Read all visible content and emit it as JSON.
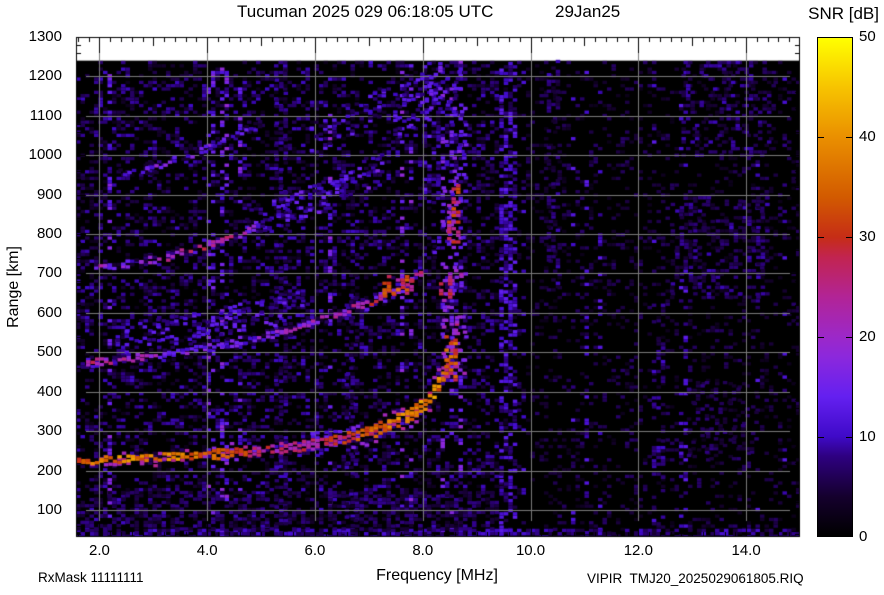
{
  "header": {
    "title_left": "Tucuman 2025 029 06:18:05 UTC",
    "title_right": "29Jan25",
    "colorbar_title": "SNR [dB]"
  },
  "footer": {
    "rx_mask": "RxMask 11111111",
    "xaxis_label": "Frequency [MHz]",
    "file_label": "VIPIR  TMJ20_2025029061805.RIQ"
  },
  "yaxis": {
    "label": "Range [km]",
    "ticks": [
      1300,
      1200,
      1100,
      1000,
      900,
      800,
      700,
      600,
      500,
      400,
      300,
      200,
      100
    ]
  },
  "xaxis": {
    "tick_values": [
      2,
      4,
      6,
      8,
      10,
      12,
      14
    ],
    "tick_labels": [
      "2.0",
      "4.0",
      "6.0",
      "8.0",
      "10.0",
      "12.0",
      "14.0"
    ]
  },
  "colorbar": {
    "tick_values": [
      50,
      40,
      30,
      20,
      10,
      0
    ],
    "dash_values": [
      40,
      30,
      20,
      10
    ]
  },
  "chart_data": {
    "type": "heatmap",
    "title": "Tucuman 2025 029 06:18:05 UTC  29Jan25",
    "xlabel": "Frequency [MHz]",
    "ylabel": "Range [km]",
    "zlabel": "SNR [dB]",
    "xlim": [
      1.565,
      15.0
    ],
    "ylim": [
      31.5,
      1300
    ],
    "zlim": [
      0,
      50
    ],
    "data_top_km": 1240,
    "grid": {
      "x_ticks": [
        2,
        4,
        6,
        8,
        10,
        12,
        14
      ],
      "y_ticks": [
        100,
        200,
        300,
        400,
        500,
        600,
        700,
        800,
        900,
        1000,
        1100,
        1200
      ],
      "color": "#7b7b7b"
    },
    "colormap": [
      [
        0,
        "#000000"
      ],
      [
        4,
        "#15002e"
      ],
      [
        8,
        "#2e0080"
      ],
      [
        10,
        "#3f0ac8"
      ],
      [
        14,
        "#6420f0"
      ],
      [
        18,
        "#8c28dc"
      ],
      [
        20,
        "#9c28c8"
      ],
      [
        24,
        "#b22496"
      ],
      [
        28,
        "#c22450"
      ],
      [
        30,
        "#c62d16"
      ],
      [
        34,
        "#d25a00"
      ],
      [
        40,
        "#ea8f00"
      ],
      [
        45,
        "#f7c300"
      ],
      [
        50,
        "#ffff00"
      ]
    ],
    "noise": {
      "cell_f": 0.0835,
      "cell_km": 8.4,
      "left": {
        "fmax": 9.35,
        "p": 0.3,
        "snr_lo": 2,
        "snr_hi": 10
      },
      "right": {
        "p": 0.16,
        "snr_lo": 2,
        "snr_hi": 7
      },
      "col_boost_p": 0.18,
      "col_boost": 1.9
    },
    "noise_patches": [
      {
        "f0": 1.565,
        "f1": 15.0,
        "km0": 31.5,
        "km1": 52,
        "p": 0.6,
        "snr": 8
      },
      {
        "f0": 1.565,
        "f1": 9.35,
        "km0": 52,
        "km1": 145,
        "p": 0.38,
        "snr": 6
      },
      {
        "f0": 9.42,
        "f1": 9.68,
        "km0": 31.5,
        "km1": 1240,
        "p": 0.5,
        "snr": 10
      },
      {
        "f0": 5.25,
        "f1": 5.5,
        "km0": 31.5,
        "km1": 1240,
        "p": 0.28,
        "snr": 7
      },
      {
        "f0": 6.55,
        "f1": 6.75,
        "km0": 31.5,
        "km1": 700,
        "p": 0.25,
        "snr": 7
      },
      {
        "f0": 12.25,
        "f1": 12.45,
        "km0": 31.5,
        "km1": 620,
        "p": 0.3,
        "snr": 8
      },
      {
        "f0": 10.3,
        "f1": 10.55,
        "km0": 650,
        "km1": 1240,
        "p": 0.3,
        "snr": 7
      },
      {
        "f0": 12.6,
        "f1": 14.4,
        "km0": 640,
        "km1": 900,
        "p": 0.3,
        "snr": 7
      },
      {
        "f0": 12.8,
        "f1": 14.5,
        "km0": 1000,
        "km1": 1240,
        "p": 0.3,
        "snr": 7
      },
      {
        "f0": 12.9,
        "f1": 14.2,
        "km0": 230,
        "km1": 430,
        "p": 0.25,
        "snr": 6
      },
      {
        "f0": 8.0,
        "f1": 8.28,
        "km0": 880,
        "km1": 1240,
        "p": 0.3,
        "snr": 10
      }
    ],
    "traces": [
      {
        "name": "2nd-hop diffuse cloud",
        "type": "diffuse",
        "points": [
          [
            2.3,
            530,
            10
          ],
          [
            3.5,
            562,
            10
          ],
          [
            4.8,
            595,
            11
          ],
          [
            5.8,
            625,
            11
          ]
        ],
        "thickness_km": 75,
        "density": 0.28
      },
      {
        "name": "3rd-hop diffuse cloud",
        "type": "diffuse",
        "points": [
          [
            4.7,
            828,
            10
          ],
          [
            5.8,
            882,
            11
          ],
          [
            6.6,
            932,
            11
          ],
          [
            7.25,
            980,
            12
          ]
        ],
        "thickness_km": 75,
        "density": 0.3
      },
      {
        "name": "4th-hop diffuse cloud",
        "type": "diffuse",
        "points": [
          [
            5.9,
            1045,
            9
          ],
          [
            6.6,
            1095,
            10
          ],
          [
            7.3,
            1145,
            10
          ]
        ],
        "thickness_km": 85,
        "density": 0.26
      },
      {
        "name": "top-right spread",
        "type": "diffuse",
        "points": [
          [
            7.45,
            1105,
            11
          ],
          [
            7.9,
            1145,
            12
          ],
          [
            8.3,
            1175,
            13
          ]
        ],
        "thickness_km": 130,
        "density": 0.32
      },
      {
        "name": "F-layer 1st hop",
        "type": "sharp",
        "points": [
          [
            1.58,
            228,
            34
          ],
          [
            2.4,
            233,
            37
          ],
          [
            3.4,
            240,
            37
          ],
          [
            4.4,
            248,
            31
          ],
          [
            5.2,
            258,
            24
          ],
          [
            6.0,
            272,
            25
          ],
          [
            6.7,
            292,
            30
          ],
          [
            7.2,
            312,
            34
          ],
          [
            7.6,
            336,
            37
          ],
          [
            8.0,
            372,
            39
          ],
          [
            8.2,
            408,
            38
          ],
          [
            8.38,
            455,
            33
          ],
          [
            8.5,
            510,
            26
          ],
          [
            8.6,
            585,
            22
          ],
          [
            8.66,
            660,
            19
          ],
          [
            8.7,
            725,
            15
          ]
        ],
        "thickness_km": 14,
        "thickness_end_km": 34,
        "density": 0.85
      },
      {
        "name": "F-layer 1st hop high branch",
        "type": "sharp",
        "points": [
          [
            8.66,
            450,
            13
          ],
          [
            8.74,
            560,
            16
          ],
          [
            8.79,
            660,
            15
          ],
          [
            8.82,
            770,
            12
          ]
        ],
        "thickness_km": 26,
        "density": 0.5
      },
      {
        "name": "F-layer 2nd hop",
        "type": "sharp",
        "points": [
          [
            1.75,
            478,
            25
          ],
          [
            2.5,
            488,
            21
          ],
          [
            3.5,
            505,
            15
          ],
          [
            4.5,
            528,
            13
          ],
          [
            5.3,
            552,
            17
          ],
          [
            6.0,
            582,
            19
          ],
          [
            6.6,
            612,
            22
          ],
          [
            7.0,
            632,
            26
          ],
          [
            7.45,
            660,
            30
          ],
          [
            7.75,
            685,
            30
          ],
          [
            8.0,
            715,
            22
          ],
          [
            8.2,
            765,
            15
          ],
          [
            8.38,
            845,
            12
          ]
        ],
        "thickness_km": 16,
        "density": 0.7
      },
      {
        "name": "F-layer 3rd hop",
        "type": "sharp",
        "points": [
          [
            1.9,
            718,
            19
          ],
          [
            2.6,
            730,
            15
          ],
          [
            3.3,
            748,
            21
          ],
          [
            4.0,
            778,
            26
          ],
          [
            4.45,
            798,
            22
          ],
          [
            5.0,
            828,
            12
          ]
        ],
        "thickness_km": 14,
        "density": 0.6
      },
      {
        "name": "F-layer 4th hop",
        "type": "sharp",
        "points": [
          [
            2.35,
            955,
            11
          ],
          [
            3.0,
            975,
            16
          ],
          [
            3.6,
            1002,
            13
          ],
          [
            4.3,
            1042,
            11
          ],
          [
            4.95,
            1082,
            9
          ]
        ],
        "thickness_km": 14,
        "density": 0.5
      }
    ],
    "vspread": {
      "f_center": 8.55,
      "f_jitter": 0.22,
      "km0": 430,
      "km1": 1245,
      "density_bottom": 0.55,
      "density_top": 0.28,
      "snr_base": 20,
      "snr_slope": -0.012
    },
    "hot_patches": [
      {
        "f0": 8.4,
        "f1": 8.62,
        "km0": 430,
        "km1": 545,
        "p": 0.5,
        "snr": 30
      },
      {
        "f0": 8.45,
        "f1": 8.68,
        "km0": 780,
        "km1": 930,
        "p": 0.42,
        "snr": 27
      },
      {
        "f0": 8.3,
        "f1": 8.5,
        "km0": 640,
        "km1": 700,
        "p": 0.35,
        "snr": 25
      },
      {
        "f0": 7.25,
        "f1": 7.8,
        "km0": 650,
        "km1": 695,
        "p": 0.4,
        "snr": 30
      }
    ]
  }
}
